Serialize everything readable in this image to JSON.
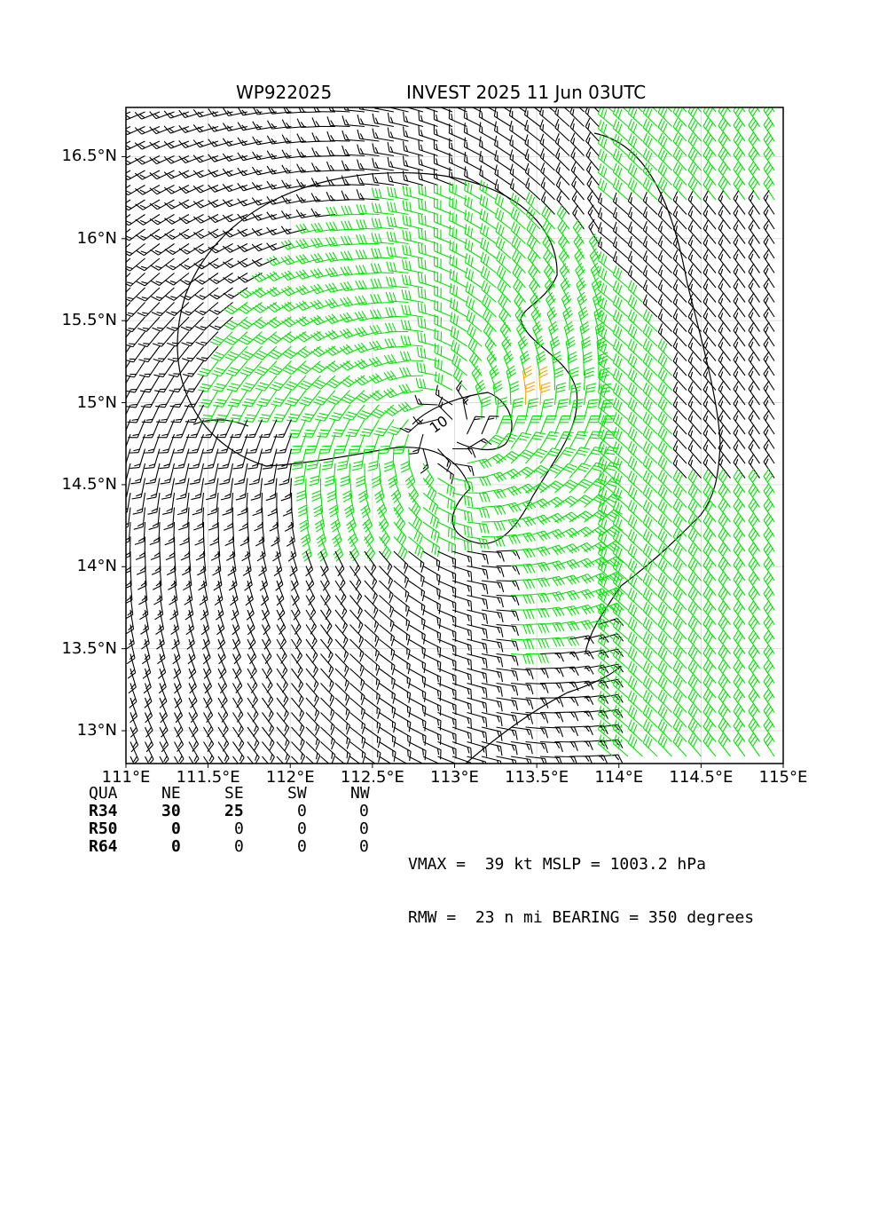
{
  "header": {
    "storm_id": "WP922025",
    "storm_desc": "INVEST 2025 11 Jun 03UTC"
  },
  "chart_data": {
    "type": "wind-barb map",
    "xlim": [
      111.0,
      115.0
    ],
    "ylim": [
      12.8,
      16.8
    ],
    "x_ticks": [
      111.0,
      111.5,
      112.0,
      112.5,
      113.0,
      113.5,
      114.0,
      114.5,
      115.0
    ],
    "x_tick_labels": [
      "111°E",
      "111.5°E",
      "112°E",
      "112.5°E",
      "113°E",
      "113.5°E",
      "114°E",
      "114.5°E",
      "115°E"
    ],
    "y_ticks": [
      13.0,
      13.5,
      14.0,
      14.5,
      15.0,
      15.5,
      16.0,
      16.5
    ],
    "y_tick_labels": [
      "13°N",
      "13.5°N",
      "14°N",
      "14.5°N",
      "15°N",
      "15.5°N",
      "16°N",
      "16.5°N"
    ],
    "grid": true,
    "center": [
      112.95,
      14.82
    ],
    "contour_labels": [
      "10"
    ],
    "colors": {
      "weak_wind": "#000000",
      "gale_wind": "#00e600",
      "storm_wind": "#ffa500",
      "contour": "#000000",
      "grid": "#dddddd"
    }
  },
  "radii_table": {
    "header": [
      "QUA",
      "NE",
      "SE",
      "SW",
      "NW"
    ],
    "rows": [
      {
        "label": "R34",
        "values": [
          "30",
          "25",
          "0",
          "0"
        ]
      },
      {
        "label": "R50",
        "values": [
          "0",
          "0",
          "0",
          "0"
        ]
      },
      {
        "label": "R64",
        "values": [
          "0",
          "0",
          "0",
          "0"
        ]
      }
    ]
  },
  "stats": {
    "line1": "VMAX =  39 kt MSLP = 1003.2 hPa",
    "line2": "RMW =  23 n mi BEARING = 350 degrees"
  }
}
